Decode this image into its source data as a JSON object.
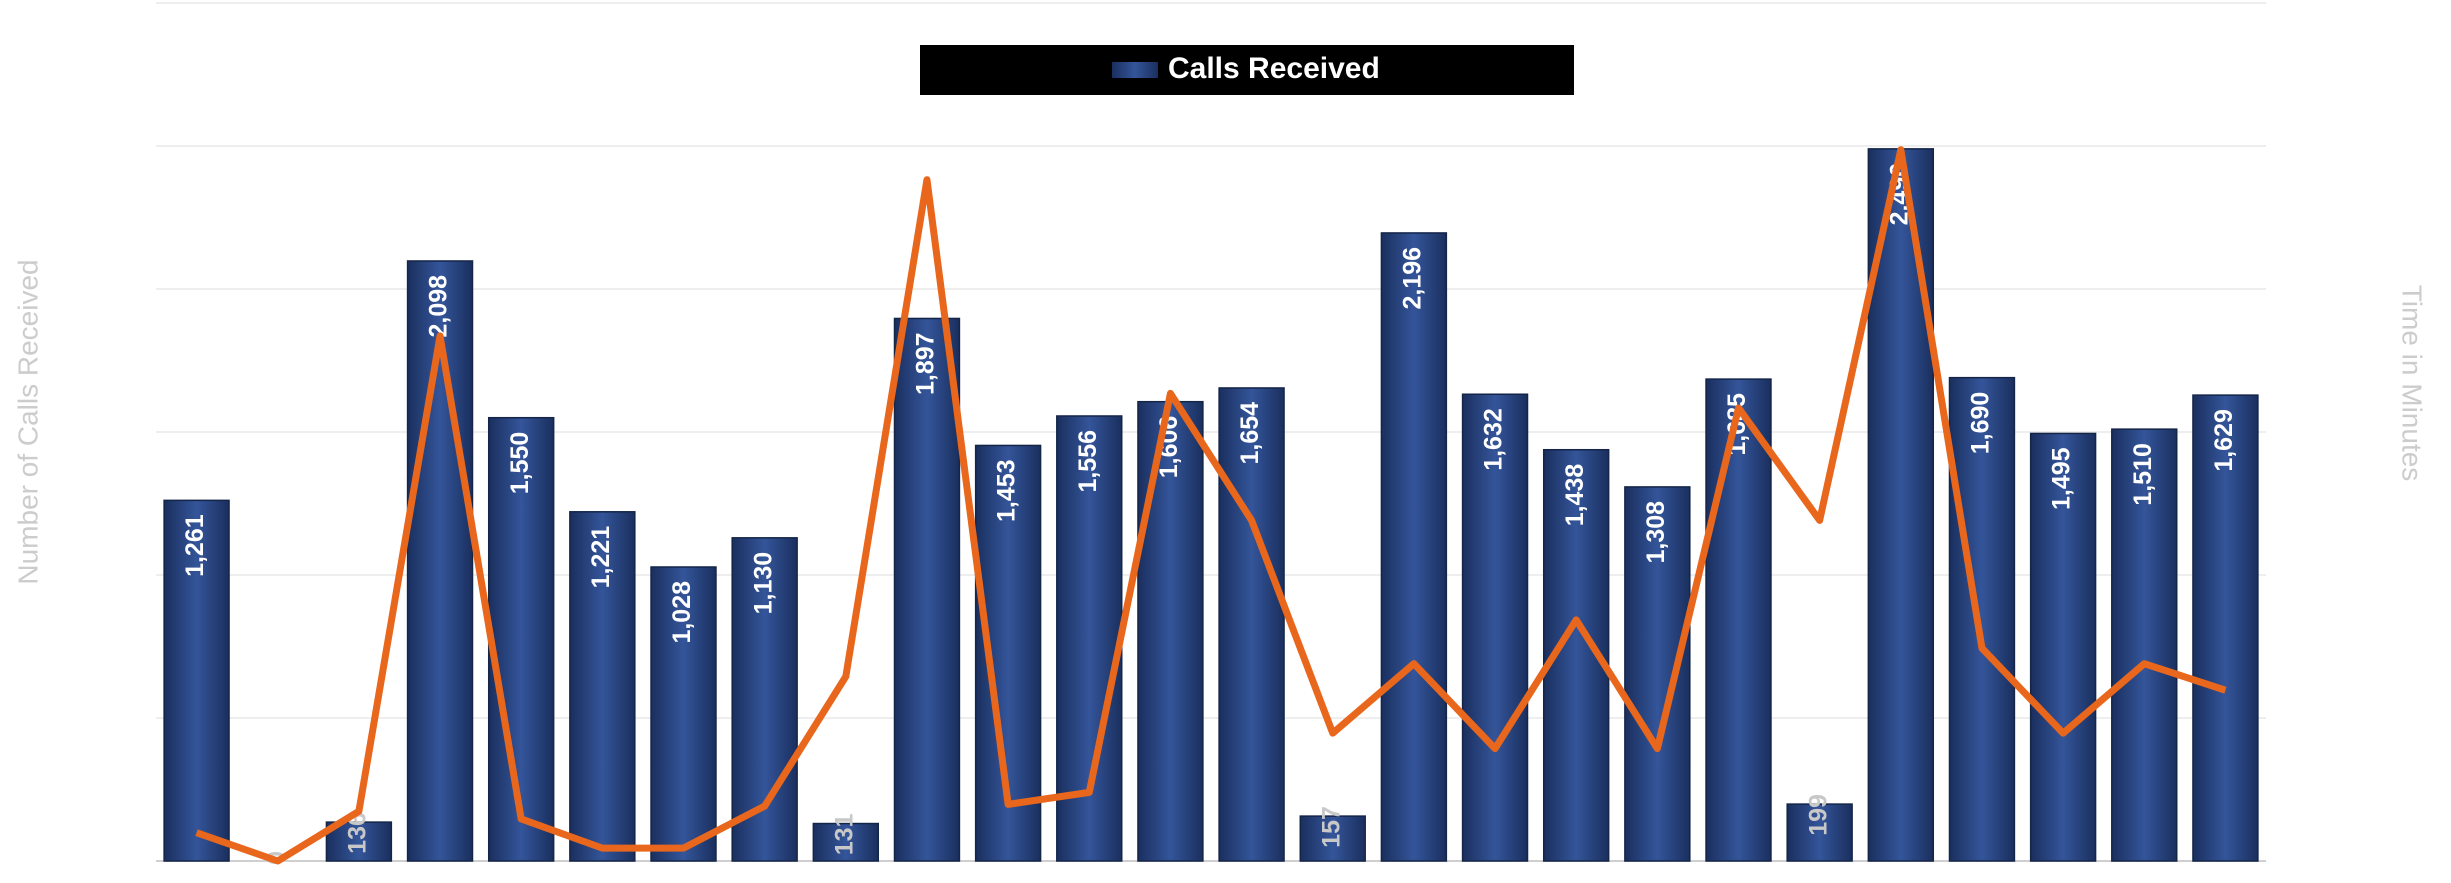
{
  "chart_data": {
    "type": "bar",
    "legend": "Calls Received",
    "ylabel": "Number of Calls Received",
    "y2label": "Time in Minutes",
    "categories": [
      null,
      null,
      null,
      null,
      null,
      null,
      null,
      null,
      null,
      null,
      null,
      null,
      null,
      null,
      null,
      null,
      null,
      null,
      null,
      null,
      null,
      null,
      null,
      null,
      null,
      null
    ],
    "series": [
      {
        "name": "Calls Received",
        "color": "#2b4a8a",
        "values": [
          1261,
          0,
          136,
          2098,
          1550,
          1221,
          1028,
          1130,
          131,
          1897,
          1453,
          1556,
          1606,
          1654,
          157,
          2196,
          1632,
          1438,
          1308,
          1685,
          199,
          2490,
          1690,
          1495,
          1510,
          1629
        ],
        "value_labels": [
          "1,261",
          "0",
          "136",
          "2,098",
          "1,550",
          "1,221",
          "1,028",
          "1,130",
          "131",
          "1,897",
          "1,453",
          "1,556",
          "1,606",
          "1,654",
          "157",
          "2,196",
          "1,632",
          "1,438",
          "1,308",
          "1,685",
          "199",
          "2,490",
          "1,690",
          "1,495",
          "1,510",
          "1,629"
        ]
      },
      {
        "type": "line",
        "axis": "y2",
        "color": "#e8671c",
        "values": [
          3.3,
          0,
          5.8,
          61.2,
          4.9,
          1.5,
          1.5,
          6.4,
          21.5,
          79.4,
          6.6,
          8.0,
          54.5,
          39.7,
          14.9,
          23.0,
          13.1,
          28.1,
          13.1,
          52.8,
          39.7,
          82.9,
          24.8,
          14.9,
          23.0,
          19.9
        ]
      }
    ],
    "ylim": [
      0,
      3000
    ],
    "yticks": [
      0,
      500,
      1000,
      1500,
      2000,
      2500,
      3000
    ],
    "y2lim": [
      0,
      100
    ],
    "grid": true
  }
}
